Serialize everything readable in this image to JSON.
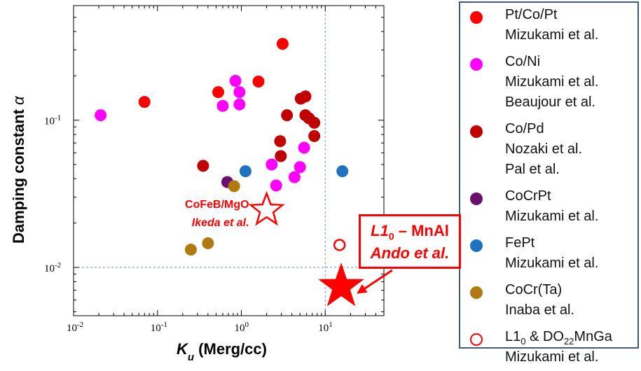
{
  "chart_data": {
    "type": "scatter",
    "xlabel_main": "K",
    "xlabel_sub": "u",
    "xlabel_rest": " (Merg/cc)",
    "ylabel": "Damping constant ",
    "ylabel_symbol": "α",
    "x_scale": "log",
    "y_scale": "log",
    "xlim": [
      0.01,
      50
    ],
    "ylim": [
      0.0047,
      0.6
    ],
    "x_ticks": [
      {
        "value": 0.01,
        "base": "10",
        "exp": "-2"
      },
      {
        "value": 0.1,
        "base": "10",
        "exp": "-1"
      },
      {
        "value": 1,
        "label": "10",
        "exp": "0"
      },
      {
        "value": 10,
        "base": "10",
        "exp": "1"
      }
    ],
    "y_ticks": [
      {
        "value": 0.01,
        "base": "10",
        "exp": "-2"
      },
      {
        "value": 0.1,
        "base": "10",
        "exp": "-1"
      }
    ],
    "reference_lines": {
      "x": 10,
      "y": 0.01
    },
    "series": [
      {
        "color": "#ff0000",
        "marker": "filled-circle",
        "points": [
          [
            0.07,
            0.133
          ],
          [
            0.53,
            0.155
          ],
          [
            1.6,
            0.183
          ],
          [
            3.1,
            0.33
          ]
        ]
      },
      {
        "color": "#ff00ff",
        "marker": "filled-circle",
        "points": [
          [
            0.021,
            0.108
          ],
          [
            0.6,
            0.125
          ],
          [
            0.85,
            0.185
          ],
          [
            0.95,
            0.155
          ],
          [
            0.95,
            0.128
          ],
          [
            2.3,
            0.05
          ],
          [
            2.6,
            0.036
          ],
          [
            4.3,
            0.041
          ],
          [
            5.0,
            0.048
          ],
          [
            5.6,
            0.065
          ]
        ]
      },
      {
        "color": "#c00000",
        "marker": "filled-circle",
        "points": [
          [
            0.35,
            0.049
          ],
          [
            2.9,
            0.072
          ],
          [
            2.95,
            0.057
          ],
          [
            3.5,
            0.108
          ],
          [
            5.1,
            0.14
          ],
          [
            5.8,
            0.145
          ],
          [
            5.8,
            0.108
          ],
          [
            6.4,
            0.103
          ],
          [
            7.4,
            0.096
          ],
          [
            7.4,
            0.078
          ]
        ]
      },
      {
        "color": "#6d0f6d",
        "marker": "filled-circle",
        "points": [
          [
            0.68,
            0.038
          ]
        ]
      },
      {
        "color": "#1f72c0",
        "marker": "filled-circle",
        "points": [
          [
            1.12,
            0.045
          ],
          [
            16.0,
            0.045
          ]
        ]
      },
      {
        "color": "#b07a10",
        "marker": "filled-circle",
        "points": [
          [
            0.25,
            0.0132
          ],
          [
            0.4,
            0.0146
          ],
          [
            0.82,
            0.0356
          ]
        ]
      },
      {
        "color": "#ff0000",
        "marker": "open-circle",
        "points": [
          [
            14.8,
            0.0142
          ]
        ]
      }
    ],
    "annotations": {
      "cofeb_star": {
        "x": 2.0,
        "y": 0.0245,
        "lines": [
          "CoFeB/MgO",
          "Ikeda et al."
        ]
      },
      "mnal_star": {
        "x": 15.5,
        "y": 0.0074
      }
    },
    "legend": [
      {
        "color": "#ff0000",
        "marker": "filled-circle",
        "lines": [
          "Pt/Co/Pt",
          "Mizukami et al."
        ]
      },
      {
        "color": "#ff00ff",
        "marker": "filled-circle",
        "lines": [
          "Co/Ni",
          "Mizukami et al.",
          "Beaujour et al."
        ]
      },
      {
        "color": "#c00000",
        "marker": "filled-circle",
        "lines": [
          "Co/Pd",
          "Nozaki et al.",
          "Pal et al."
        ]
      },
      {
        "color": "#6d0f6d",
        "marker": "filled-circle",
        "lines": [
          "CoCrPt",
          "Mizukami et al."
        ]
      },
      {
        "color": "#1f72c0",
        "marker": "filled-circle",
        "lines": [
          "FePt",
          "Mizukami et al."
        ]
      },
      {
        "color": "#b07a10",
        "marker": "filled-circle",
        "lines": [
          "CoCr(Ta)",
          "Inaba et al."
        ]
      },
      {
        "color": "#ff0000",
        "marker": "open-circle",
        "line1_a": "L1",
        "line1_sub_a": "0",
        "line1_b": " & DO",
        "line1_sub_b": "22",
        "line1_c": "MnGa",
        "lines": [
          "Mizukami et al."
        ]
      }
    ],
    "callout": {
      "l_a": "L1",
      "l_sub": "0",
      "l_b": " – MnAl",
      "l2": "Ando et al."
    }
  }
}
